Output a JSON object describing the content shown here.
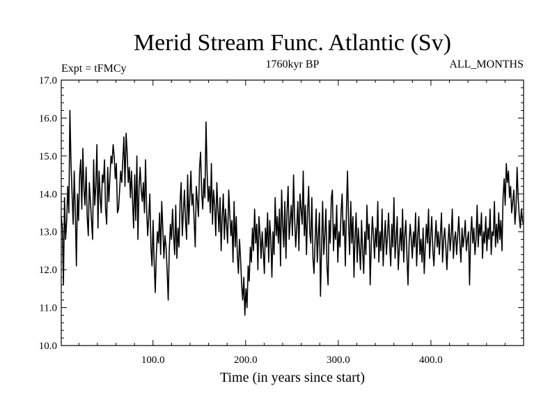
{
  "chart_data": {
    "type": "line",
    "title": "Merid Stream Func. Atlantic (Sv)",
    "subtitle_left": "Expt = tFMCy",
    "subtitle_center": "1760kyr BP",
    "subtitle_right": "ALL_MONTHS",
    "xlabel": "Time (in years since start)",
    "ylabel": "",
    "xlim": [
      1,
      500
    ],
    "ylim": [
      10.0,
      17.0
    ],
    "xticks": [
      100,
      200,
      300,
      400
    ],
    "xtick_labels": [
      "100.0",
      "200.0",
      "300.0",
      "400.0"
    ],
    "yticks": [
      10,
      11,
      12,
      13,
      14,
      15,
      16,
      17
    ],
    "ytick_labels": [
      "10.0",
      "11.0",
      "12.0",
      "13.0",
      "14.0",
      "15.0",
      "16.0",
      "17.0"
    ],
    "grid": false,
    "series": [
      {
        "name": "Atlantic MOC",
        "x_start": 1,
        "x_step": 1,
        "values": [
          13.4,
          13.1,
          11.6,
          13.9,
          12.8,
          13.3,
          14.2,
          13.5,
          16.2,
          14.8,
          14.0,
          13.2,
          14.6,
          13.5,
          12.1,
          14.0,
          13.3,
          14.5,
          14.9,
          13.6,
          15.2,
          14.1,
          13.7,
          14.7,
          13.4,
          12.9,
          14.3,
          13.8,
          13.3,
          12.8,
          14.9,
          13.7,
          14.2,
          15.3,
          13.1,
          14.6,
          13.9,
          13.5,
          14.5,
          14.3,
          14.9,
          13.6,
          13.2,
          14.7,
          13.8,
          14.4,
          15.0,
          14.8,
          15.3,
          15.0,
          14.4,
          14.8,
          13.5,
          13.6,
          14.1,
          14.6,
          14.3,
          14.9,
          15.5,
          14.2,
          15.6,
          15.1,
          14.3,
          14.7,
          13.9,
          14.6,
          13.8,
          13.1,
          14.5,
          13.3,
          15.0,
          12.8,
          14.2,
          14.7,
          14.1,
          13.8,
          14.3,
          13.5,
          14.9,
          13.6,
          12.9,
          13.4,
          14.0,
          12.6,
          12.1,
          13.3,
          12.2,
          11.4,
          12.4,
          13.0,
          12.7,
          13.5,
          12.4,
          13.8,
          13.1,
          12.3,
          12.9,
          12.6,
          12.0,
          11.2,
          12.5,
          13.2,
          12.8,
          13.6,
          12.9,
          12.4,
          13.7,
          12.3,
          13.1,
          12.6,
          13.8,
          14.3,
          12.9,
          13.5,
          14.1,
          13.3,
          12.8,
          14.5,
          13.2,
          13.9,
          14.6,
          13.7,
          14.0,
          13.3,
          12.6,
          14.2,
          13.8,
          13.4,
          14.7,
          15.1,
          14.0,
          13.6,
          14.4,
          13.9,
          15.9,
          14.6,
          13.8,
          14.2,
          13.5,
          14.8,
          13.2,
          14.1,
          13.7,
          12.9,
          14.3,
          13.6,
          13.0,
          13.9,
          12.5,
          13.4,
          14.0,
          12.8,
          13.6,
          13.2,
          12.7,
          14.1,
          13.5,
          12.9,
          13.3,
          12.2,
          13.8,
          12.6,
          13.4,
          12.4,
          11.9,
          12.8,
          12.3,
          11.6,
          11.2,
          11.8,
          10.8,
          11.5,
          11.0,
          12.1,
          11.7,
          12.6,
          12.2,
          13.1,
          12.5,
          13.6,
          12.7,
          13.2,
          12.0,
          13.4,
          12.9,
          12.3,
          13.0,
          12.5,
          11.9,
          13.1,
          12.6,
          13.5,
          12.2,
          13.3,
          12.8,
          11.8,
          13.0,
          12.4,
          13.9,
          12.9,
          13.4,
          12.7,
          13.6,
          12.1,
          14.1,
          13.2,
          12.6,
          13.8,
          12.3,
          13.5,
          14.2,
          12.8,
          13.3,
          13.7,
          12.9,
          14.5,
          13.4,
          12.6,
          13.1,
          13.8,
          12.5,
          14.0,
          13.6,
          13.2,
          14.6,
          12.9,
          13.7,
          12.4,
          13.5,
          14.2,
          13.0,
          12.7,
          13.9,
          12.3,
          11.9,
          12.8,
          13.6,
          12.2,
          12.9,
          13.5,
          11.3,
          12.6,
          13.8,
          12.4,
          12.9,
          13.6,
          12.1,
          11.6,
          13.3,
          12.7,
          13.9,
          14.1,
          12.5,
          13.2,
          12.8,
          13.7,
          12.2,
          13.0,
          12.6,
          13.5,
          14.0,
          12.9,
          13.3,
          12.1,
          13.6,
          14.6,
          13.2,
          12.4,
          13.8,
          12.7,
          13.4,
          11.8,
          12.9,
          13.5,
          12.2,
          13.1,
          12.6,
          12.0,
          13.3,
          12.5,
          11.9,
          13.0,
          12.4,
          13.7,
          12.8,
          13.2,
          11.6,
          12.7,
          13.4,
          12.9,
          12.3,
          13.1,
          12.6,
          13.8,
          12.2,
          13.0,
          12.5,
          13.6,
          12.1,
          12.8,
          13.3,
          12.4,
          12.9,
          13.5,
          12.7,
          12.1,
          13.2,
          12.6,
          13.9,
          12.3,
          12.8,
          13.4,
          12.0,
          12.6,
          13.1,
          12.5,
          13.6,
          12.2,
          12.9,
          13.3,
          12.4,
          11.6,
          12.7,
          13.2,
          12.8,
          12.3,
          13.0,
          12.6,
          13.5,
          12.1,
          12.9,
          13.4,
          12.4,
          12.8,
          12.2,
          13.1,
          11.9,
          12.6,
          13.2,
          12.7,
          13.6,
          12.3,
          12.9,
          13.4,
          12.5,
          12.1,
          12.8,
          13.3,
          12.6,
          13.0,
          12.4,
          12.9,
          13.5,
          12.2,
          12.8,
          13.1,
          12.6,
          12.0,
          12.7,
          13.2,
          12.5,
          12.9,
          13.6,
          12.3,
          12.8,
          13.0,
          12.4,
          12.9,
          13.4,
          12.7,
          12.2,
          13.1,
          12.6,
          12.9,
          13.3,
          12.5,
          12.8,
          13.0,
          11.6,
          12.9,
          13.4,
          12.7,
          13.1,
          12.4,
          12.8,
          13.7,
          12.6,
          13.2,
          12.9,
          13.5,
          12.3,
          13.0,
          12.7,
          13.4,
          12.5,
          13.1,
          12.8,
          13.6,
          12.4,
          13.0,
          12.9,
          13.8,
          12.6,
          13.2,
          12.7,
          13.5,
          12.8,
          13.3,
          12.5,
          13.9,
          14.4,
          13.7,
          14.8,
          14.3,
          14.6,
          13.9,
          14.2,
          13.5,
          13.8,
          14.1,
          13.2,
          13.6,
          14.7,
          13.9,
          13.4,
          13.1,
          13.6,
          13.3,
          13.2
        ]
      }
    ]
  }
}
